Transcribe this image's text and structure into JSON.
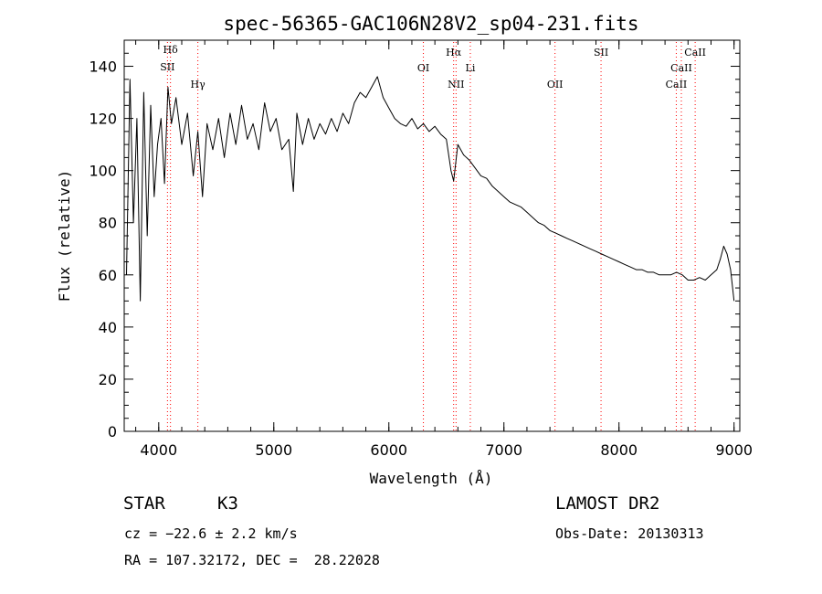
{
  "chart_data": {
    "type": "line",
    "title": "spec-56365-GAC106N28V2_sp04-231.fits",
    "xlabel": "Wavelength (Å)",
    "ylabel": "Flux (relative)",
    "xlim": [
      3700,
      9050
    ],
    "ylim": [
      0,
      150
    ],
    "x_ticks": [
      4000,
      5000,
      6000,
      7000,
      8000,
      9000
    ],
    "y_ticks": [
      0,
      20,
      40,
      60,
      80,
      100,
      120,
      140
    ],
    "line_color": "#000000",
    "marker_color": "#ff0000",
    "grid": false,
    "series": [
      {
        "x": [
          3720,
          3750,
          3780,
          3810,
          3840,
          3870,
          3900,
          3930,
          3960,
          3990,
          4020,
          4050,
          4080,
          4110,
          4150,
          4200,
          4250,
          4300,
          4340,
          4380,
          4420,
          4470,
          4520,
          4570,
          4620,
          4670,
          4720,
          4770,
          4820,
          4870,
          4920,
          4970,
          5020,
          5070,
          5130,
          5170,
          5200,
          5250,
          5300,
          5350,
          5400,
          5450,
          5500,
          5550,
          5600,
          5650,
          5700,
          5750,
          5800,
          5850,
          5900,
          5950,
          6000,
          6050,
          6100,
          6150,
          6200,
          6250,
          6300,
          6350,
          6400,
          6450,
          6500,
          6540,
          6563,
          6600,
          6650,
          6700,
          6750,
          6800,
          6850,
          6900,
          6950,
          7000,
          7050,
          7100,
          7150,
          7200,
          7250,
          7300,
          7350,
          7400,
          7450,
          7500,
          7550,
          7600,
          7650,
          7700,
          7750,
          7800,
          7850,
          7900,
          7950,
          8000,
          8050,
          8100,
          8150,
          8200,
          8250,
          8300,
          8350,
          8400,
          8450,
          8500,
          8550,
          8600,
          8650,
          8700,
          8750,
          8800,
          8850,
          8880,
          8910,
          8940,
          8970,
          9000
        ],
        "y": [
          60,
          135,
          80,
          120,
          50,
          130,
          75,
          125,
          90,
          110,
          120,
          95,
          132,
          118,
          128,
          110,
          122,
          98,
          115,
          90,
          118,
          108,
          120,
          105,
          122,
          110,
          125,
          112,
          118,
          108,
          126,
          115,
          120,
          108,
          112,
          92,
          122,
          110,
          120,
          112,
          118,
          114,
          120,
          115,
          122,
          118,
          126,
          130,
          128,
          132,
          136,
          128,
          124,
          120,
          118,
          117,
          120,
          116,
          118,
          115,
          117,
          114,
          112,
          100,
          96,
          110,
          106,
          104,
          101,
          98,
          97,
          94,
          92,
          90,
          88,
          87,
          86,
          84,
          82,
          80,
          79,
          77,
          76,
          75,
          74,
          73,
          72,
          71,
          70,
          69,
          68,
          67,
          66,
          65,
          64,
          63,
          62,
          62,
          61,
          61,
          60,
          60,
          60,
          61,
          60,
          58,
          58,
          59,
          58,
          60,
          62,
          66,
          71,
          68,
          62,
          50
        ]
      }
    ],
    "lines": [
      {
        "label": "Hδ",
        "x": 4102
      },
      {
        "label": "SII",
        "x": 4076
      },
      {
        "label": "Hγ",
        "x": 4340
      },
      {
        "label": "OI",
        "x": 6300
      },
      {
        "label": "Hα",
        "x": 6563
      },
      {
        "label": "NII",
        "x": 6584
      },
      {
        "label": "Li",
        "x": 6708
      },
      {
        "label": "OII",
        "x": 7444
      },
      {
        "label": "SII",
        "x": 7844
      },
      {
        "label": "CaII",
        "x": 8662
      },
      {
        "label": "CaII",
        "x": 8542
      },
      {
        "label": "CaII",
        "x": 8498
      }
    ]
  },
  "info": {
    "object_class": "STAR",
    "subclass": "K3",
    "survey": "LAMOST DR2",
    "velocity": "cz = −22.6 ± 2.2 km/s",
    "obs_date": "Obs-Date: 20130313",
    "coords": "RA = 107.32172, DEC =  28.22028"
  }
}
